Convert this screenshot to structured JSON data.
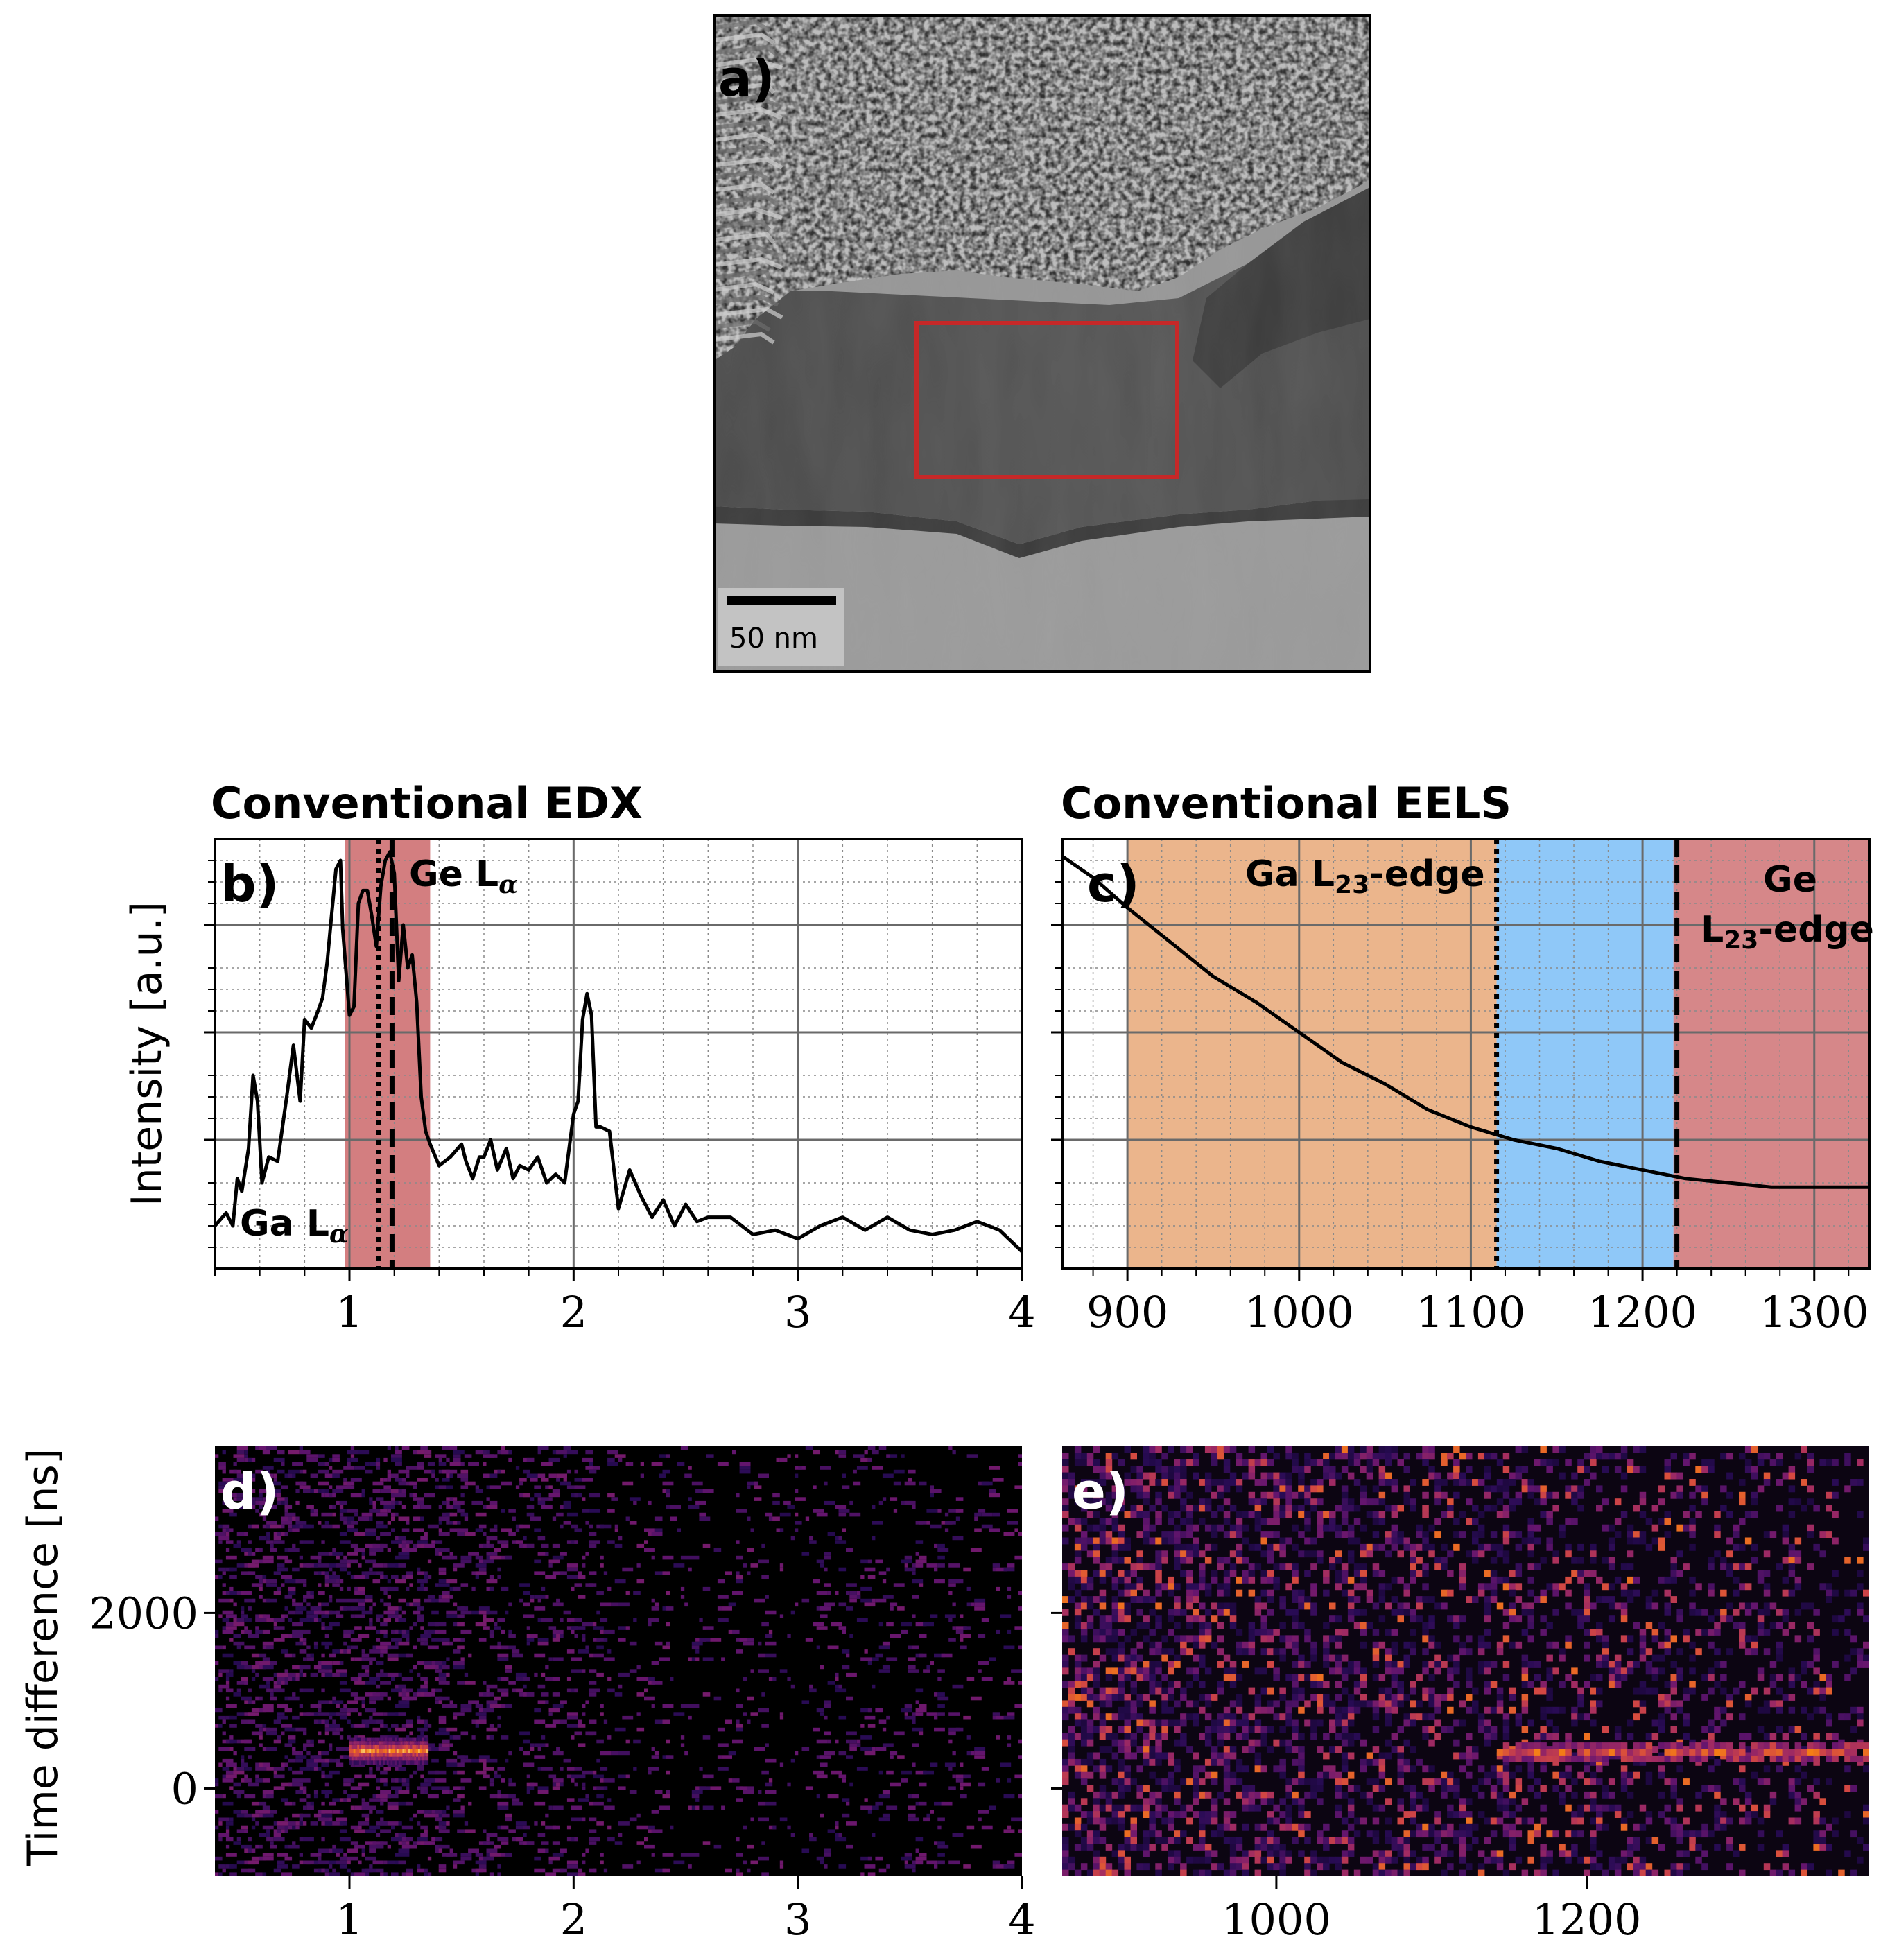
{
  "colors": {
    "edx_band": "#c0474a",
    "eels_ga_band": "#e08e4e",
    "eels_gap_band": "#5fb0f5",
    "eels_ge_band": "#c0474a",
    "roi_box": "#c62828",
    "curve": "#000000"
  },
  "panel_a": {
    "label": "a)",
    "scalebar_label": "50 nm"
  },
  "panel_b": {
    "label": "b)",
    "title": "Conventional EDX",
    "ylabel": "Intensity [a.u.]",
    "annotation_ge": "Ge L",
    "annotation_ge_sub": "α",
    "annotation_ga": "Ga L",
    "annotation_ga_sub": "α"
  },
  "panel_c": {
    "label": "c)",
    "title": "Conventional EELS",
    "annotation_ga": "Ga L",
    "annotation_ga_sub": "23",
    "annotation_ga_suffix": "-edge",
    "annotation_ge_line1": "Ge",
    "annotation_ge_line2": "L",
    "annotation_ge_sub": "23",
    "annotation_ge_suffix": "-edge"
  },
  "panel_d": {
    "label": "d)",
    "ylabel": "Time difference [ns]"
  },
  "panel_e": {
    "label": "e)"
  },
  "chart_data": [
    {
      "type": "line",
      "panel": "b",
      "title": "Conventional EDX",
      "ylabel": "Intensity [a.u.]",
      "xlim": [
        0.4,
        4.0
      ],
      "ylim": [
        0,
        100
      ],
      "x_ticks": [
        1,
        2,
        3,
        4
      ],
      "x_tick_labels": [
        "1",
        "2",
        "3",
        "4"
      ],
      "grid": "major+minor",
      "band": [
        0.98,
        1.36
      ],
      "dotted_line": 1.13,
      "dashed_line": 1.19,
      "x": [
        0.4,
        0.45,
        0.48,
        0.5,
        0.52,
        0.55,
        0.57,
        0.59,
        0.61,
        0.64,
        0.68,
        0.72,
        0.75,
        0.78,
        0.8,
        0.83,
        0.86,
        0.88,
        0.9,
        0.92,
        0.94,
        0.96,
        0.97,
        1.0,
        1.02,
        1.04,
        1.06,
        1.08,
        1.1,
        1.12,
        1.14,
        1.16,
        1.18,
        1.2,
        1.22,
        1.24,
        1.26,
        1.28,
        1.3,
        1.32,
        1.34,
        1.36,
        1.4,
        1.45,
        1.5,
        1.52,
        1.55,
        1.58,
        1.6,
        1.63,
        1.66,
        1.7,
        1.73,
        1.76,
        1.8,
        1.84,
        1.88,
        1.92,
        1.96,
        2.0,
        2.02,
        2.04,
        2.06,
        2.08,
        2.1,
        2.12,
        2.16,
        2.2,
        2.25,
        2.3,
        2.35,
        2.4,
        2.45,
        2.5,
        2.55,
        2.6,
        2.7,
        2.8,
        2.9,
        3.0,
        3.1,
        3.2,
        3.3,
        3.4,
        3.5,
        3.6,
        3.7,
        3.8,
        3.9,
        4.0
      ],
      "y": [
        10,
        13,
        10,
        21,
        18,
        28,
        45,
        39,
        20,
        26,
        25,
        40,
        52,
        39,
        58,
        56,
        60,
        63,
        71,
        82,
        93,
        95,
        79,
        59,
        61,
        85,
        88,
        88,
        82,
        75,
        89,
        95,
        97,
        92,
        67,
        80,
        70,
        73,
        62,
        40,
        32,
        29,
        24,
        26,
        29,
        25,
        21,
        26,
        26,
        30,
        23,
        28,
        21,
        24,
        23,
        26,
        20,
        22,
        20,
        36,
        39,
        58,
        64,
        59,
        33,
        33,
        32,
        14,
        23,
        17,
        12,
        16,
        10,
        15,
        11,
        12,
        12,
        8,
        9,
        7,
        10,
        12,
        9,
        12,
        9,
        8,
        9,
        11,
        9,
        4
      ],
      "series": [
        {
          "name": "",
          "style": "solid"
        }
      ]
    },
    {
      "type": "line",
      "panel": "c",
      "title": "Conventional EELS",
      "xlim": [
        862,
        1332
      ],
      "ylim": [
        0,
        100
      ],
      "x_ticks": [
        900,
        1000,
        1100,
        1200,
        1300
      ],
      "x_tick_labels": [
        "900",
        "1000",
        "1100",
        "1200",
        "1300"
      ],
      "grid": "major+minor",
      "bands": [
        {
          "from": 900,
          "to": 1115,
          "color": "eels_ga_band"
        },
        {
          "from": 1115,
          "to": 1218,
          "color": "eels_gap_band"
        },
        {
          "from": 1218,
          "to": 1332,
          "color": "eels_ge_band"
        }
      ],
      "dotted_line": 1115,
      "dashed_line": 1220,
      "x": [
        862,
        880,
        900,
        925,
        950,
        975,
        1000,
        1025,
        1050,
        1075,
        1100,
        1125,
        1150,
        1175,
        1200,
        1225,
        1250,
        1275,
        1300,
        1332
      ],
      "y": [
        96,
        91,
        84,
        76,
        68,
        62,
        55,
        48,
        43,
        37,
        33,
        30,
        28,
        25,
        23,
        21,
        20,
        19,
        19,
        19
      ]
    },
    {
      "type": "heatmap",
      "panel": "d",
      "ylabel": "Time difference [ns]",
      "xlim": [
        0.4,
        4.0
      ],
      "ylim": [
        -1000,
        3900
      ],
      "x_ticks": [
        1,
        2,
        3,
        4
      ],
      "x_tick_labels": [
        "1",
        "2",
        "3",
        "4"
      ],
      "y_ticks": [
        0,
        2000
      ],
      "y_tick_labels": [
        "0",
        "2000"
      ],
      "hotspot": {
        "x": [
          1.0,
          1.35
        ],
        "y_center": 450
      },
      "colormap": "inferno"
    },
    {
      "type": "heatmap",
      "panel": "e",
      "xlim": [
        862,
        1382
      ],
      "ylim": [
        -1000,
        3900
      ],
      "x_ticks": [
        1000,
        1200
      ],
      "x_tick_labels": [
        "1000",
        "1200"
      ],
      "y_ticks": [
        0,
        2000
      ],
      "streak": {
        "x": [
          1140,
          1382
        ],
        "y_center": 450
      },
      "colormap": "inferno"
    }
  ]
}
